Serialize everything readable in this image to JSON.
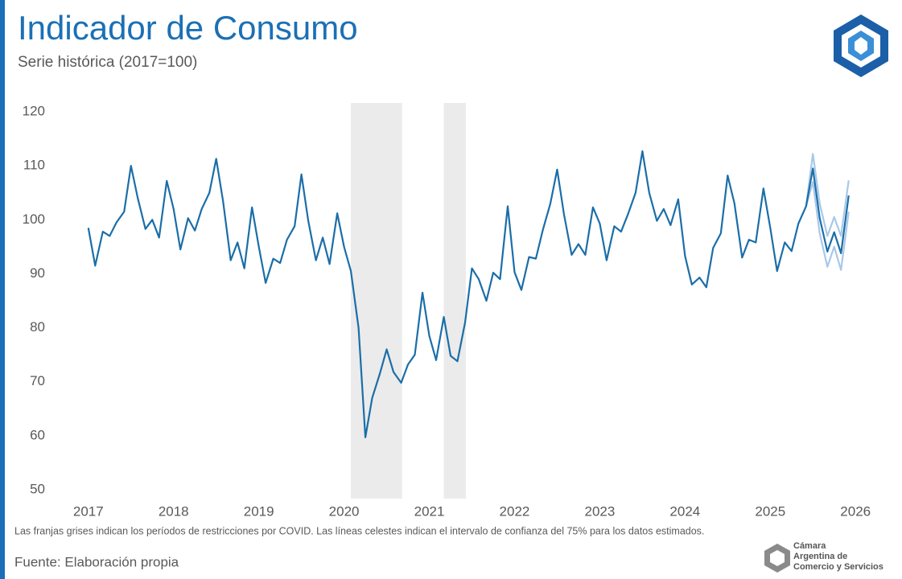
{
  "chart_data": {
    "type": "line",
    "title": "Indicador de Consumo",
    "subtitle": "Serie histórica (2017=100)",
    "note": "Las franjas grises indican los períodos de restricciones por COVID. Las líneas celestes indican el intervalo de confianza del 75% para los datos estimados.",
    "source": "Fuente: Elaboración propia",
    "logo_text": [
      "Cámara",
      "Argentina de",
      "Comercio y Servicios"
    ],
    "x": [
      2017.0,
      2017.08,
      2017.17,
      2017.25,
      2017.33,
      2017.42,
      2017.5,
      2017.58,
      2017.67,
      2017.75,
      2017.83,
      2017.92,
      2018.0,
      2018.08,
      2018.17,
      2018.25,
      2018.33,
      2018.42,
      2018.5,
      2018.58,
      2018.67,
      2018.75,
      2018.83,
      2018.92,
      2019.0,
      2019.08,
      2019.17,
      2019.25,
      2019.33,
      2019.42,
      2019.5,
      2019.58,
      2019.67,
      2019.75,
      2019.83,
      2019.92,
      2020.0,
      2020.08,
      2020.17,
      2020.25,
      2020.33,
      2020.42,
      2020.5,
      2020.58,
      2020.67,
      2020.75,
      2020.83,
      2020.92,
      2021.0,
      2021.08,
      2021.17,
      2021.25,
      2021.33,
      2021.42,
      2021.5,
      2021.58,
      2021.67,
      2021.75,
      2021.83,
      2021.92,
      2022.0,
      2022.08,
      2022.17,
      2022.25,
      2022.33,
      2022.42,
      2022.5,
      2022.58,
      2022.67,
      2022.75,
      2022.83,
      2022.92,
      2023.0,
      2023.08,
      2023.17,
      2023.25,
      2023.33,
      2023.42,
      2023.5,
      2023.58,
      2023.67,
      2023.75,
      2023.83,
      2023.92,
      2024.0,
      2024.08,
      2024.17,
      2024.25,
      2024.33,
      2024.42,
      2024.5,
      2024.58,
      2024.67,
      2024.75,
      2024.83,
      2024.92,
      2025.0,
      2025.08,
      2025.17,
      2025.25,
      2025.33,
      2025.42,
      2025.5,
      2025.58,
      2025.67,
      2025.75,
      2025.83,
      2025.92
    ],
    "series": [
      {
        "name": "Límite superior",
        "color": "#a9c8e8",
        "x": [
          2025.42,
          2025.5,
          2025.58,
          2025.67,
          2025.75,
          2025.83,
          2025.92
        ],
        "values": [
          102.5,
          112.2,
          103,
          97,
          100.5,
          97,
          107.3
        ]
      },
      {
        "name": "Límite inferior",
        "color": "#a9c8e8",
        "x": [
          2025.42,
          2025.5,
          2025.58,
          2025.67,
          2025.75,
          2025.83,
          2025.92
        ],
        "values": [
          102.5,
          107,
          97.5,
          91.3,
          95,
          90.7,
          101.5
        ]
      },
      {
        "name": "Indicador de Consumo",
        "color": "#1b6ea8",
        "values": [
          98.5,
          91.5,
          97.8,
          97,
          99.5,
          101.5,
          110,
          104,
          98.3,
          100,
          96.7,
          107.2,
          102,
          94.5,
          100.3,
          98,
          102,
          105,
          111.3,
          103.5,
          92.5,
          95.8,
          91,
          102.3,
          95,
          88.3,
          92.8,
          92,
          96.3,
          98.8,
          108.4,
          99.8,
          92.5,
          96.7,
          91.8,
          101.2,
          95,
          90.5,
          80,
          59.7,
          67,
          71.5,
          76,
          71.8,
          69.8,
          73.2,
          75,
          86.5,
          78.5,
          74,
          82,
          74.8,
          73.8,
          81,
          91,
          89,
          85,
          90.2,
          89,
          102.5,
          90.3,
          87,
          93.1,
          92.8,
          98,
          103,
          109.3,
          101,
          93.5,
          95.5,
          93.5,
          102.3,
          99.3,
          92.5,
          98.8,
          97.8,
          101,
          105,
          112.7,
          105,
          99.8,
          102,
          99,
          103.8,
          93.3,
          88,
          89.3,
          87.5,
          94.8,
          97.5,
          108.2,
          103,
          93,
          96.3,
          95.8,
          105.8,
          98.5,
          90.5,
          95.8,
          94.2,
          99.3,
          102.5,
          109.5,
          100.3,
          94.1,
          97.7,
          93.8,
          104.5
        ]
      }
    ],
    "shaded_periods": [
      [
        2020.08,
        2020.68
      ],
      [
        2021.17,
        2021.43
      ]
    ],
    "shade_color": "#ebebeb",
    "xlim": [
      2016.53,
      2026.3
    ],
    "xticks": [
      2017,
      2018,
      2019,
      2020,
      2021,
      2022,
      2023,
      2024,
      2025,
      2026
    ],
    "ylim": [
      48,
      122
    ],
    "yticks": [
      50,
      60,
      70,
      80,
      90,
      100,
      110,
      120
    ],
    "grid": false
  }
}
